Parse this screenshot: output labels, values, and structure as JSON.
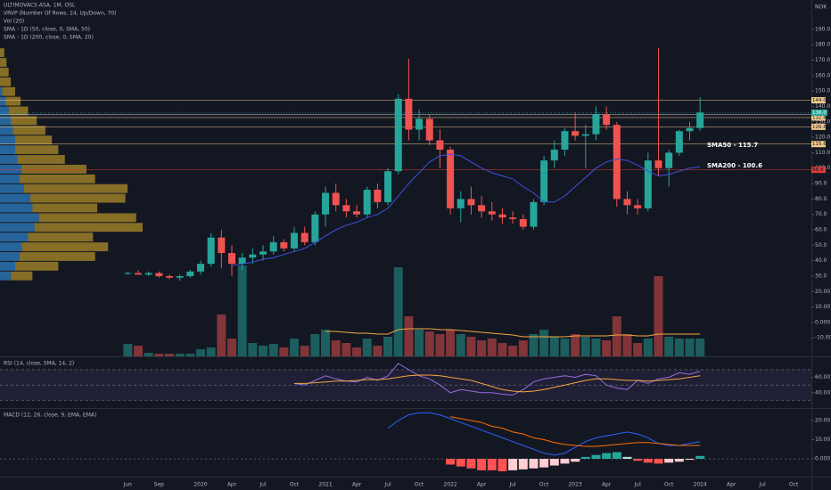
{
  "currency": "NOK",
  "chart_data": [
    {
      "type": "candlestick",
      "title": "ULTIMOVACS ASA, 1M, OSL",
      "indicators": [
        "SMA - 1D (50, close, 0, SMA, 50)"
      ],
      "categories": [
        "2019-06",
        "2019-07",
        "2019-08",
        "2019-09",
        "2019-10",
        "2019-11",
        "2019-12",
        "2020-01",
        "2020-02",
        "2020-03",
        "2020-04",
        "2020-05",
        "2020-06",
        "2020-07",
        "2020-08",
        "2020-09",
        "2020-10",
        "2020-11",
        "2020-12",
        "2021-01",
        "2021-02",
        "2021-03",
        "2021-04",
        "2021-05",
        "2021-06",
        "2021-07",
        "2021-08",
        "2021-09",
        "2021-10",
        "2021-11",
        "2021-12",
        "2022-01",
        "2022-02",
        "2022-03",
        "2022-04",
        "2022-05",
        "2022-06",
        "2022-07",
        "2022-08",
        "2022-09",
        "2022-10",
        "2022-11",
        "2022-12",
        "2023-01",
        "2023-02",
        "2023-03",
        "2023-04",
        "2023-05",
        "2023-06",
        "2023-07",
        "2023-08",
        "2023-09",
        "2023-10",
        "2023-11",
        "2023-12",
        "2024-01"
      ],
      "open": [
        32,
        32,
        31,
        32,
        30,
        29,
        30,
        33,
        38,
        55,
        45,
        38,
        42,
        44,
        46,
        52,
        48,
        58,
        52,
        70,
        84,
        76,
        72,
        70,
        86,
        78,
        98,
        145,
        125,
        132,
        118,
        112,
        74,
        80,
        76,
        72,
        70,
        68,
        67,
        62,
        78,
        105,
        112,
        124,
        121,
        122,
        135,
        128,
        80,
        76,
        74,
        105,
        100,
        110,
        124,
        126
      ],
      "high": [
        33,
        34,
        33,
        33,
        31,
        31,
        34,
        40,
        58,
        60,
        50,
        45,
        48,
        50,
        56,
        54,
        62,
        62,
        72,
        88,
        90,
        80,
        76,
        88,
        90,
        100,
        148,
        171,
        138,
        135,
        125,
        114,
        85,
        88,
        82,
        78,
        74,
        72,
        70,
        80,
        108,
        118,
        126,
        136,
        128,
        140,
        140,
        130,
        85,
        80,
        110,
        178,
        112,
        125,
        130,
        146
      ],
      "low": [
        31,
        31,
        30,
        29,
        28,
        27,
        29,
        31,
        36,
        35,
        30,
        34,
        38,
        40,
        44,
        46,
        46,
        50,
        50,
        62,
        72,
        68,
        68,
        68,
        74,
        76,
        96,
        118,
        118,
        115,
        100,
        70,
        65,
        70,
        68,
        66,
        64,
        64,
        60,
        60,
        76,
        100,
        108,
        118,
        100,
        118,
        125,
        75,
        70,
        70,
        72,
        95,
        88,
        108,
        118,
        124
      ],
      "close": [
        32,
        31,
        32,
        30,
        29,
        30,
        33,
        38,
        55,
        45,
        38,
        42,
        44,
        46,
        52,
        48,
        58,
        52,
        70,
        84,
        76,
        72,
        70,
        86,
        78,
        98,
        145,
        125,
        132,
        118,
        112,
        74,
        80,
        76,
        72,
        70,
        68,
        67,
        62,
        78,
        105,
        112,
        124,
        121,
        122,
        135,
        128,
        80,
        76,
        74,
        105,
        100,
        110,
        124,
        126,
        136
      ],
      "up_color": "#26a69a",
      "down_color": "#ef5350",
      "ylim": [
        -22,
        209
      ],
      "yticks": [
        {
          "value": -10,
          "label": "-10.00"
        },
        {
          "value": 0,
          "label": "0.000"
        },
        {
          "value": 10,
          "label": "10.00"
        },
        {
          "value": 20,
          "label": "20.00"
        },
        {
          "value": 30,
          "label": "30.0"
        },
        {
          "value": 40,
          "label": "40.0"
        },
        {
          "value": 50,
          "label": "50.0"
        },
        {
          "value": 60,
          "label": "60.0"
        },
        {
          "value": 70,
          "label": "70.0"
        },
        {
          "value": 80,
          "label": "80.0"
        },
        {
          "value": 90,
          "label": "90.0"
        },
        {
          "value": 100,
          "label": "100.0"
        },
        {
          "value": 110,
          "label": "110.0"
        },
        {
          "value": 120,
          "label": "120.0"
        },
        {
          "value": 130,
          "label": "130.0"
        },
        {
          "value": 140,
          "label": "140.0"
        },
        {
          "value": 150,
          "label": "150.0"
        },
        {
          "value": 160,
          "label": "160.0"
        },
        {
          "value": 170,
          "label": "170.0"
        },
        {
          "value": 180,
          "label": "180.0"
        },
        {
          "value": 190,
          "label": "190.0"
        }
      ],
      "xticks": [
        {
          "value": "2019-06",
          "label": "Jun"
        },
        {
          "value": "2019-09",
          "label": "Sep"
        },
        {
          "value": "2020-01",
          "label": "2020"
        },
        {
          "value": "2020-04",
          "label": "Apr"
        },
        {
          "value": "2020-07",
          "label": "Jul"
        },
        {
          "value": "2020-10",
          "label": "Oct"
        },
        {
          "value": "2021-01",
          "label": "2021"
        },
        {
          "value": "2021-04",
          "label": "Apr"
        },
        {
          "value": "2021-07",
          "label": "Jul"
        },
        {
          "value": "2021-10",
          "label": "Oct"
        },
        {
          "value": "2022-01",
          "label": "2022"
        },
        {
          "value": "2022-04",
          "label": "Apr"
        },
        {
          "value": "2022-07",
          "label": "Jul"
        },
        {
          "value": "2022-10",
          "label": "Oct"
        },
        {
          "value": "2023-01",
          "label": "2023"
        },
        {
          "value": "2023-04",
          "label": "Apr"
        },
        {
          "value": "2023-07",
          "label": "Jul"
        },
        {
          "value": "2023-10",
          "label": "Oct"
        },
        {
          "value": "2024-01",
          "label": "2024"
        },
        {
          "value": "2024-04",
          "label": "Apr"
        },
        {
          "value": "2024-07",
          "label": "Jul"
        },
        {
          "value": "2024-10",
          "label": "Oct"
        }
      ],
      "series": [
        {
          "name": "SMA - 1D (200, close, 0, SMA, 20)",
          "color": "#3f51e0",
          "values": [
            null,
            null,
            null,
            null,
            null,
            null,
            null,
            null,
            null,
            null,
            37,
            38,
            39,
            41,
            42,
            44,
            46,
            48,
            52,
            56,
            60,
            63,
            65,
            68,
            70,
            74,
            82,
            90,
            97,
            104,
            108,
            109,
            108,
            104,
            100,
            97,
            95,
            93,
            88,
            84,
            78,
            78,
            82,
            88,
            94,
            100,
            104,
            106,
            105,
            102,
            98,
            95,
            96,
            98,
            100,
            101
          ]
        }
      ],
      "levels": [
        {
          "value": 144.0,
          "label": "144.0",
          "color": "#f3c98b"
        },
        {
          "value": 134.8,
          "label": "134.8",
          "color": "#d1d4dc"
        },
        {
          "value": 132.8,
          "label": "132.8",
          "color": "#f3c98b"
        },
        {
          "value": 126.8,
          "label": "126.8",
          "color": "#f3c98b"
        },
        {
          "value": 115.6,
          "label": "115.6",
          "color": "#f3c98b"
        },
        {
          "value": 98.9,
          "label": "98.9",
          "color": "#e53935"
        }
      ],
      "last": {
        "value": 136.0,
        "label": "136.0",
        "color": "#26a69a"
      },
      "annotations": [
        "SMA50 - 115.7",
        "SMA200 - 100.6"
      ],
      "volume_profile": {
        "name": "VRVP (Number Of Rows, 24, Up/Down, 70)",
        "up_color": "#2f7fc4",
        "down_color": "#d4a82a",
        "up": [
          0,
          0,
          0,
          0,
          2,
          5,
          8,
          10,
          12,
          14,
          14,
          16,
          20,
          18,
          22,
          28,
          30,
          36,
          32,
          26,
          20,
          18,
          14,
          10
        ],
        "down": [
          4,
          6,
          8,
          10,
          12,
          14,
          18,
          24,
          30,
          34,
          40,
          44,
          60,
          70,
          96,
          88,
          60,
          90,
          100,
          60,
          80,
          70,
          40,
          20
        ]
      }
    },
    {
      "type": "bar",
      "title": "Vol (20)",
      "values": [
        14,
        12,
        4,
        3,
        3,
        3,
        3,
        8,
        10,
        47,
        20,
        102,
        15,
        12,
        14,
        10,
        20,
        12,
        25,
        30,
        18,
        15,
        10,
        20,
        12,
        22,
        100,
        45,
        30,
        28,
        25,
        30,
        25,
        22,
        18,
        20,
        15,
        12,
        18,
        25,
        30,
        22,
        20,
        25,
        22,
        20,
        18,
        45,
        25,
        15,
        20,
        90,
        22,
        20,
        20,
        20
      ],
      "ma_color": "#f5a742",
      "ma_values": [
        null,
        null,
        null,
        null,
        null,
        null,
        null,
        null,
        null,
        null,
        null,
        null,
        null,
        null,
        null,
        null,
        null,
        null,
        null,
        28,
        28,
        27,
        26,
        26,
        25,
        25,
        30,
        31,
        31,
        31,
        30,
        30,
        29,
        28,
        27,
        26,
        25,
        24,
        22,
        22,
        22,
        22,
        22,
        23,
        23,
        23,
        23,
        24,
        24,
        23,
        23,
        25,
        25,
        25,
        25,
        25
      ]
    },
    {
      "type": "line",
      "title": "RSI (14, close, SMA, 14, 2)",
      "ylim": [
        20,
        85
      ],
      "yticks": [
        {
          "value": 40,
          "label": "40.00"
        },
        {
          "value": 60,
          "label": "60.00"
        }
      ],
      "bands": [
        70,
        50,
        30
      ],
      "band_color": "#7e57c2",
      "series": [
        {
          "color": "#9c6ade",
          "values": [
            null,
            null,
            null,
            null,
            null,
            null,
            null,
            null,
            null,
            null,
            null,
            null,
            null,
            null,
            null,
            null,
            52,
            50,
            56,
            62,
            58,
            55,
            54,
            60,
            56,
            62,
            78,
            70,
            62,
            58,
            50,
            40,
            44,
            42,
            40,
            40,
            38,
            37,
            44,
            54,
            58,
            60,
            62,
            60,
            64,
            62,
            50,
            46,
            44,
            56,
            52,
            58,
            60,
            66,
            64,
            68
          ]
        },
        {
          "color": "#f5a742",
          "values": [
            null,
            null,
            null,
            null,
            null,
            null,
            null,
            null,
            null,
            null,
            null,
            null,
            null,
            null,
            null,
            null,
            52,
            52,
            53,
            54,
            55,
            55,
            56,
            57,
            57,
            58,
            60,
            62,
            63,
            63,
            62,
            60,
            58,
            56,
            52,
            48,
            44,
            42,
            41,
            42,
            44,
            47,
            50,
            53,
            56,
            58,
            58,
            57,
            56,
            56,
            55,
            56,
            57,
            58,
            60,
            62
          ]
        }
      ]
    },
    {
      "type": "macd",
      "title": "MACD (12, 26, close, 9, EMA, EMA)",
      "ylim": [
        -9.3,
        25.6
      ],
      "yticks": [
        {
          "value": 0,
          "label": "0.000"
        },
        {
          "value": 10,
          "label": "10.00"
        },
        {
          "value": 20,
          "label": "20.00"
        }
      ],
      "series": [
        {
          "color": "#2962ff",
          "values": [
            null,
            null,
            null,
            null,
            null,
            null,
            null,
            null,
            null,
            null,
            null,
            null,
            null,
            null,
            null,
            null,
            null,
            null,
            null,
            null,
            null,
            null,
            null,
            null,
            null,
            16,
            20,
            23,
            24,
            24,
            23,
            21,
            19,
            17,
            15,
            13,
            11,
            9,
            7,
            5,
            3,
            2,
            3,
            6,
            9,
            11,
            12,
            13,
            14,
            13,
            11,
            8,
            7,
            7,
            8,
            9
          ]
        },
        {
          "color": "#ff6d00",
          "values": [
            null,
            null,
            null,
            null,
            null,
            null,
            null,
            null,
            null,
            null,
            null,
            null,
            null,
            null,
            null,
            null,
            null,
            null,
            null,
            null,
            null,
            null,
            null,
            null,
            null,
            null,
            null,
            null,
            null,
            null,
            null,
            22,
            21,
            20,
            19,
            17,
            16,
            14,
            13,
            11,
            10,
            8.5,
            7.5,
            7,
            6.5,
            6.5,
            7,
            7.5,
            8,
            8.5,
            8.5,
            8,
            7.5,
            7,
            7,
            7
          ]
        }
      ],
      "histogram": [
        null,
        null,
        null,
        null,
        null,
        null,
        null,
        null,
        null,
        null,
        null,
        null,
        null,
        null,
        null,
        null,
        null,
        null,
        null,
        null,
        null,
        null,
        null,
        null,
        null,
        null,
        null,
        null,
        null,
        null,
        null,
        -3,
        -4,
        -5,
        -6,
        -6,
        -6.5,
        -6,
        -5.5,
        -5,
        -4.5,
        -3.5,
        -2.5,
        -1.5,
        1,
        2,
        3,
        3.5,
        1,
        -1,
        -2,
        -2.5,
        -2,
        -1.5,
        -0.5,
        1.5
      ],
      "histogram_colors": [
        "#26a69a",
        "#b2dfdb",
        "#ff5252",
        "#ffcdd2"
      ]
    }
  ]
}
